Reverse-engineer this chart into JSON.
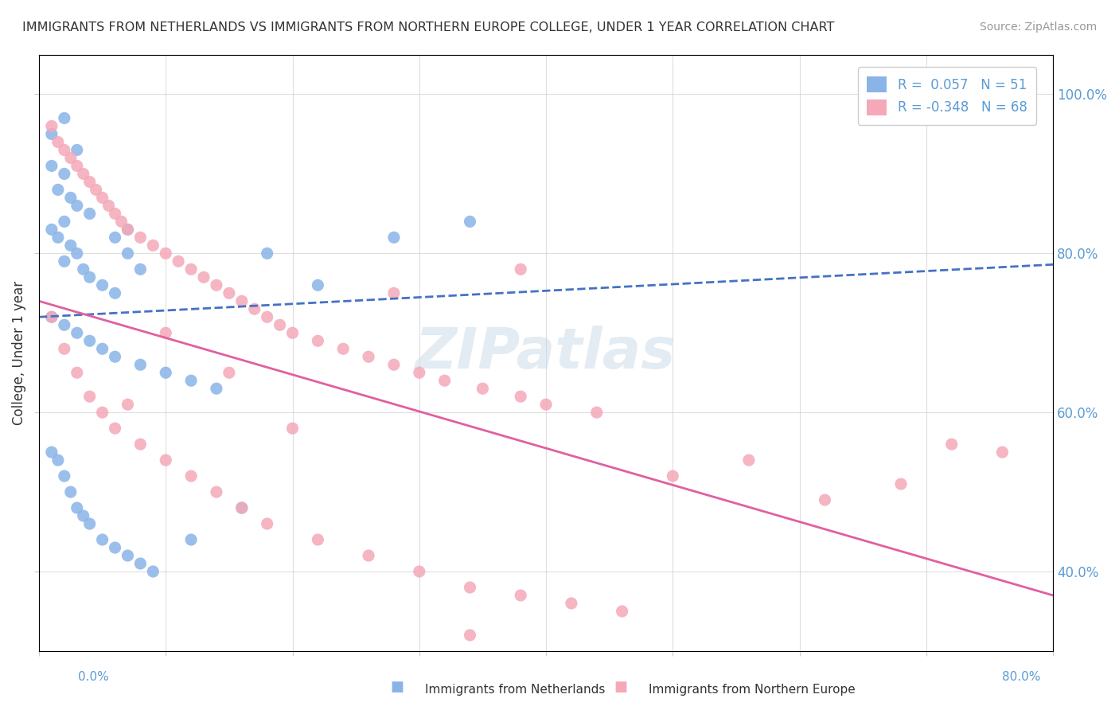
{
  "title": "IMMIGRANTS FROM NETHERLANDS VS IMMIGRANTS FROM NORTHERN EUROPE COLLEGE, UNDER 1 YEAR CORRELATION CHART",
  "source": "Source: ZipAtlas.com",
  "ylabel": "College, Under 1 year",
  "legend_blue_r": "R =  0.057",
  "legend_blue_n": "N = 51",
  "legend_pink_r": "R = -0.348",
  "legend_pink_n": "N = 68",
  "legend_label_blue": "Immigrants from Netherlands",
  "legend_label_pink": "Immigrants from Northern Europe",
  "blue_color": "#8ab4e8",
  "pink_color": "#f4a8b8",
  "blue_line_color": "#4472c4",
  "pink_line_color": "#e060a0",
  "watermark": "ZIPatlas",
  "watermark_color": "#c8d8e8",
  "background_color": "#ffffff",
  "xlim": [
    0.0,
    0.8
  ],
  "ylim": [
    0.3,
    1.05
  ],
  "blue_scatter_x": [
    0.02,
    0.01,
    0.03,
    0.01,
    0.02,
    0.015,
    0.025,
    0.03,
    0.04,
    0.02,
    0.01,
    0.015,
    0.025,
    0.03,
    0.02,
    0.035,
    0.04,
    0.05,
    0.06,
    0.07,
    0.08,
    0.06,
    0.07,
    0.01,
    0.02,
    0.03,
    0.04,
    0.05,
    0.06,
    0.08,
    0.1,
    0.12,
    0.14,
    0.18,
    0.22,
    0.28,
    0.34,
    0.01,
    0.015,
    0.02,
    0.025,
    0.03,
    0.035,
    0.04,
    0.05,
    0.06,
    0.07,
    0.08,
    0.09,
    0.12,
    0.16
  ],
  "blue_scatter_y": [
    0.97,
    0.95,
    0.93,
    0.91,
    0.9,
    0.88,
    0.87,
    0.86,
    0.85,
    0.84,
    0.83,
    0.82,
    0.81,
    0.8,
    0.79,
    0.78,
    0.77,
    0.76,
    0.75,
    0.8,
    0.78,
    0.82,
    0.83,
    0.72,
    0.71,
    0.7,
    0.69,
    0.68,
    0.67,
    0.66,
    0.65,
    0.64,
    0.63,
    0.8,
    0.76,
    0.82,
    0.84,
    0.55,
    0.54,
    0.52,
    0.5,
    0.48,
    0.47,
    0.46,
    0.44,
    0.43,
    0.42,
    0.41,
    0.4,
    0.44,
    0.48
  ],
  "pink_scatter_x": [
    0.01,
    0.015,
    0.02,
    0.025,
    0.03,
    0.035,
    0.04,
    0.045,
    0.05,
    0.055,
    0.06,
    0.065,
    0.07,
    0.08,
    0.09,
    0.1,
    0.11,
    0.12,
    0.13,
    0.14,
    0.15,
    0.16,
    0.17,
    0.18,
    0.19,
    0.2,
    0.22,
    0.24,
    0.26,
    0.28,
    0.3,
    0.32,
    0.35,
    0.38,
    0.4,
    0.44,
    0.01,
    0.02,
    0.03,
    0.04,
    0.05,
    0.06,
    0.08,
    0.1,
    0.12,
    0.14,
    0.16,
    0.18,
    0.22,
    0.26,
    0.3,
    0.34,
    0.38,
    0.42,
    0.46,
    0.5,
    0.56,
    0.62,
    0.68,
    0.72,
    0.76,
    0.38,
    0.34,
    0.28,
    0.2,
    0.15,
    0.1,
    0.07
  ],
  "pink_scatter_y": [
    0.96,
    0.94,
    0.93,
    0.92,
    0.91,
    0.9,
    0.89,
    0.88,
    0.87,
    0.86,
    0.85,
    0.84,
    0.83,
    0.82,
    0.81,
    0.8,
    0.79,
    0.78,
    0.77,
    0.76,
    0.75,
    0.74,
    0.73,
    0.72,
    0.71,
    0.7,
    0.69,
    0.68,
    0.67,
    0.66,
    0.65,
    0.64,
    0.63,
    0.62,
    0.61,
    0.6,
    0.72,
    0.68,
    0.65,
    0.62,
    0.6,
    0.58,
    0.56,
    0.54,
    0.52,
    0.5,
    0.48,
    0.46,
    0.44,
    0.42,
    0.4,
    0.38,
    0.37,
    0.36,
    0.35,
    0.52,
    0.54,
    0.49,
    0.51,
    0.56,
    0.55,
    0.78,
    0.32,
    0.75,
    0.58,
    0.65,
    0.7,
    0.61
  ],
  "blue_line_x": [
    0.0,
    0.8
  ],
  "blue_line_y": [
    0.72,
    0.786
  ],
  "pink_line_x": [
    0.0,
    0.8
  ],
  "pink_line_y": [
    0.74,
    0.37
  ]
}
